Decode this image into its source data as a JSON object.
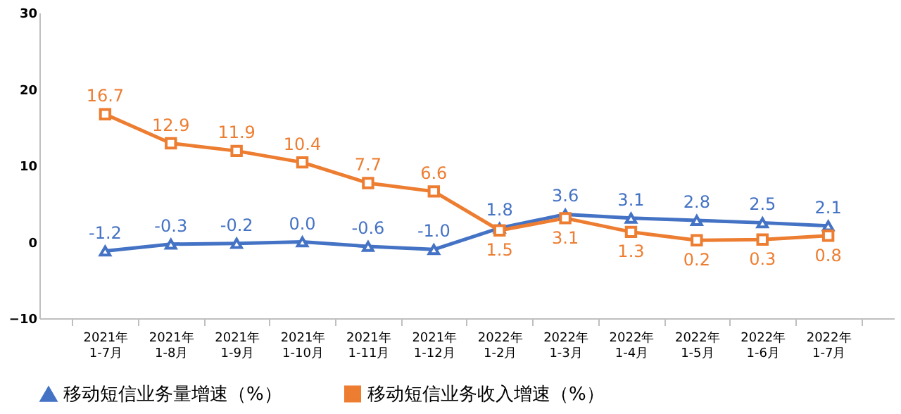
{
  "chart_data": {
    "type": "line",
    "categories": [
      "2021年\n1-7月",
      "2021年\n1-8月",
      "2021年\n1-9月",
      "2021年\n1-10月",
      "2021年\n1-11月",
      "2021年\n1-12月",
      "2022年\n1-2月",
      "2022年\n1-3月",
      "2022年\n1-4月",
      "2022年\n1-5月",
      "2022年\n1-6月",
      "2022年\n1-7月"
    ],
    "series": [
      {
        "name": "移动短信业务量增速（%）",
        "color": "#4472c4",
        "marker": "triangle",
        "values": [
          -1.2,
          -0.3,
          -0.2,
          0.0,
          -0.6,
          -1.0,
          1.8,
          3.6,
          3.1,
          2.8,
          2.5,
          2.1
        ],
        "value_labels": [
          "-1.2",
          "-0.3",
          "-0.2",
          "0.0",
          "-0.6",
          "-1.0",
          "1.8",
          "3.6",
          "3.1",
          "2.8",
          "2.5",
          "2.1"
        ]
      },
      {
        "name": "移动短信业务收入增速（%）",
        "color": "#ed7d31",
        "marker": "square",
        "values": [
          16.7,
          12.9,
          11.9,
          10.4,
          7.7,
          6.6,
          1.5,
          3.1,
          1.3,
          0.2,
          0.3,
          0.8
        ]
      }
    ],
    "ylim": [
      -10,
      30
    ],
    "yticks": [
      -10,
      0,
      10,
      20,
      30
    ],
    "grid": false,
    "legend": "bottom",
    "data_labels": true,
    "line_style": "solid"
  }
}
